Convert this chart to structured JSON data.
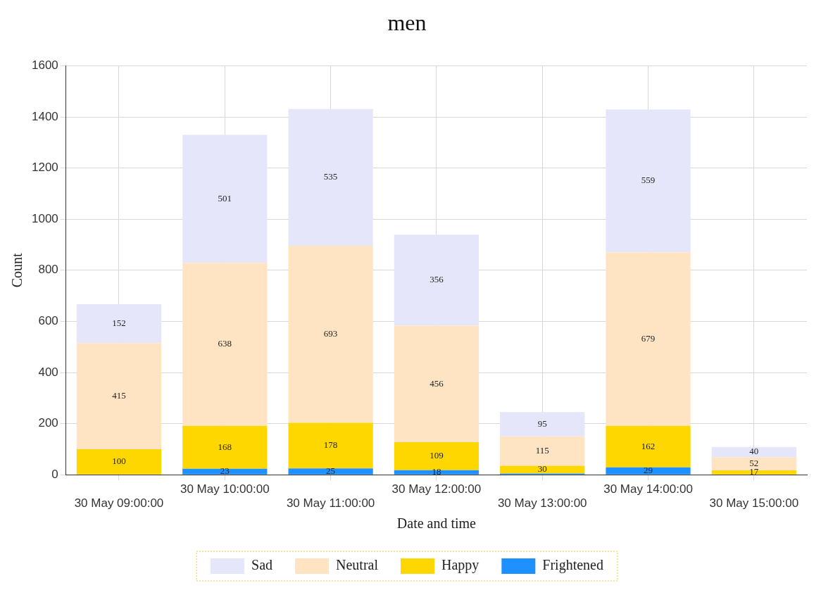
{
  "chart_data": {
    "type": "bar",
    "title": "men",
    "xlabel": "Date and time",
    "ylabel": "Count",
    "stacked": true,
    "categories": [
      "30 May 09:00:00",
      "30 May 10:00:00",
      "30 May 11:00:00",
      "30 May 12:00:00",
      "30 May 13:00:00",
      "30 May 14:00:00",
      "30 May 15:00:00"
    ],
    "series": [
      {
        "name": "Frightened",
        "color": "#1e90ff",
        "values": [
          null,
          23,
          25,
          18,
          5,
          29,
          null
        ],
        "value_labels": [
          null,
          "23",
          "25",
          "18",
          null,
          "29",
          null
        ]
      },
      {
        "name": "Happy",
        "color": "#ffd700",
        "values": [
          100,
          168,
          178,
          109,
          30,
          162,
          17
        ],
        "value_labels": [
          "100",
          "168",
          "178",
          "109",
          "30",
          "162",
          "17"
        ]
      },
      {
        "name": "Neutral",
        "color": "#ffe4c4",
        "values": [
          415,
          638,
          693,
          456,
          115,
          679,
          52
        ],
        "value_labels": [
          "415",
          "638",
          "693",
          "456",
          "115",
          "679",
          "52"
        ]
      },
      {
        "name": "Sad",
        "color": "#e6e6fa",
        "values": [
          152,
          501,
          535,
          356,
          95,
          559,
          40
        ],
        "value_labels": [
          "152",
          "501",
          "535",
          "356",
          "95",
          "559",
          "40"
        ]
      }
    ],
    "ylim": [
      0,
      1600
    ],
    "yticks": [
      0,
      200,
      400,
      600,
      800,
      1000,
      1200,
      1400,
      1600
    ],
    "grid": true,
    "legend": "bottom"
  }
}
